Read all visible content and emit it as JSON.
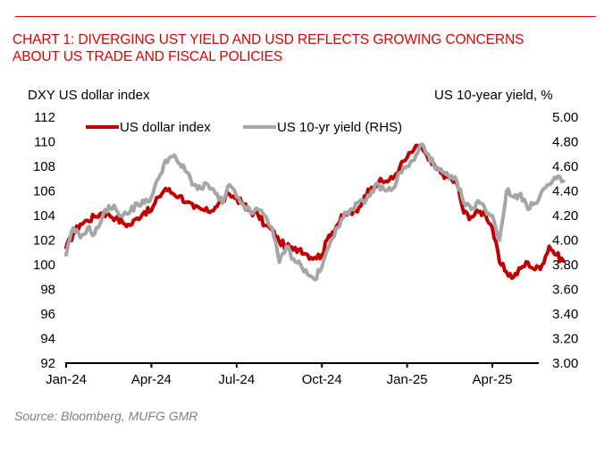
{
  "header": {
    "title_line1": "CHART 1: DIVERGING UST YIELD AND USD REFLECTS GROWING CONCERNS",
    "title_line2": "ABOUT US TRADE AND FISCAL POLICIES"
  },
  "footer": {
    "source": "Source: Bloomberg, MUFG GMR"
  },
  "colors": {
    "title": "#e00000",
    "dxy": "#c00000",
    "yield": "#a6a6a6",
    "axis": "#000000",
    "source": "#7f7f7f"
  },
  "chart_data": {
    "type": "line",
    "title": "CHART 1: DIVERGING UST YIELD AND USD REFLECTS GROWING CONCERNS ABOUT US TRADE AND FISCAL POLICIES",
    "ylabel": "DXY US dollar index",
    "y2label": "US 10-year yield, %",
    "xlabel": "",
    "ylim": [
      92,
      112
    ],
    "y2lim": [
      3.0,
      5.0
    ],
    "yticks": [
      "112",
      "110",
      "108",
      "106",
      "104",
      "102",
      "100",
      "98",
      "96",
      "94",
      "92"
    ],
    "y2ticks": [
      "5.00",
      "4.80",
      "4.60",
      "4.40",
      "4.20",
      "4.00",
      "3.80",
      "3.60",
      "3.40",
      "3.20",
      "3.00"
    ],
    "xticks": [
      "Jan-24",
      "Apr-24",
      "Jul-24",
      "Oct-24",
      "Jan-25",
      "Apr-25"
    ],
    "xrange_months": [
      0,
      17.5
    ],
    "grid": false,
    "legend": {
      "placement": "top-left",
      "entries": [
        "US dollar index",
        "US 10-yr yield (RHS)"
      ]
    },
    "x_months": [
      0,
      0.25,
      0.5,
      0.75,
      1,
      1.25,
      1.5,
      1.75,
      2,
      2.25,
      2.5,
      2.75,
      3,
      3.25,
      3.5,
      3.75,
      4,
      4.25,
      4.5,
      4.75,
      5,
      5.25,
      5.5,
      5.75,
      6,
      6.25,
      6.5,
      6.75,
      7,
      7.25,
      7.5,
      7.75,
      8,
      8.25,
      8.5,
      8.75,
      9,
      9.25,
      9.5,
      9.75,
      10,
      10.25,
      10.5,
      10.75,
      11,
      11.25,
      11.5,
      11.75,
      12,
      12.25,
      12.5,
      12.75,
      13,
      13.25,
      13.5,
      13.75,
      14,
      14.25,
      14.5,
      14.75,
      15,
      15.25,
      15.5,
      15.75,
      16,
      16.25,
      16.5,
      16.75,
      17,
      17.25,
      17.5
    ],
    "series": [
      {
        "name": "US dollar index",
        "axis": "left",
        "values": [
          101.4,
          102.5,
          103.3,
          103.6,
          103.9,
          104.2,
          104.1,
          103.8,
          103.4,
          103.2,
          103.8,
          104.3,
          104.4,
          105.5,
          106.2,
          105.8,
          105.6,
          105.1,
          104.6,
          104.5,
          104.3,
          104.7,
          105.2,
          105.7,
          105.4,
          104.9,
          104.3,
          104.1,
          103.2,
          102.8,
          101.9,
          101.5,
          101.2,
          101.3,
          100.8,
          100.6,
          100.8,
          102.4,
          103.1,
          104.0,
          104.2,
          104.3,
          105.6,
          106.3,
          106.7,
          106.8,
          107.0,
          108.0,
          108.7,
          109.4,
          109.6,
          108.5,
          107.8,
          107.4,
          107.0,
          106.6,
          104.2,
          103.9,
          104.3,
          104.2,
          103.0,
          100.2,
          99.4,
          99.0,
          99.7,
          100.2,
          99.6,
          100.0,
          101.5,
          100.8,
          100.3
        ]
      },
      {
        "name": "US 10-yr yield (RHS)",
        "axis": "right",
        "values": [
          3.88,
          4.1,
          4.02,
          4.1,
          4.05,
          4.17,
          4.28,
          4.25,
          4.2,
          4.23,
          4.3,
          4.3,
          4.35,
          4.5,
          4.65,
          4.68,
          4.62,
          4.55,
          4.45,
          4.42,
          4.45,
          4.38,
          4.3,
          4.45,
          4.35,
          4.28,
          4.22,
          4.25,
          4.2,
          4.1,
          3.82,
          3.95,
          3.85,
          3.8,
          3.72,
          3.68,
          3.78,
          3.95,
          4.1,
          4.18,
          4.25,
          4.3,
          4.3,
          4.4,
          4.45,
          4.4,
          4.42,
          4.55,
          4.6,
          4.65,
          4.78,
          4.7,
          4.58,
          4.55,
          4.5,
          4.48,
          4.3,
          4.25,
          4.32,
          4.25,
          4.2,
          4.0,
          4.4,
          4.35,
          4.38,
          4.25,
          4.3,
          4.4,
          4.45,
          4.5,
          4.48
        ]
      }
    ]
  }
}
